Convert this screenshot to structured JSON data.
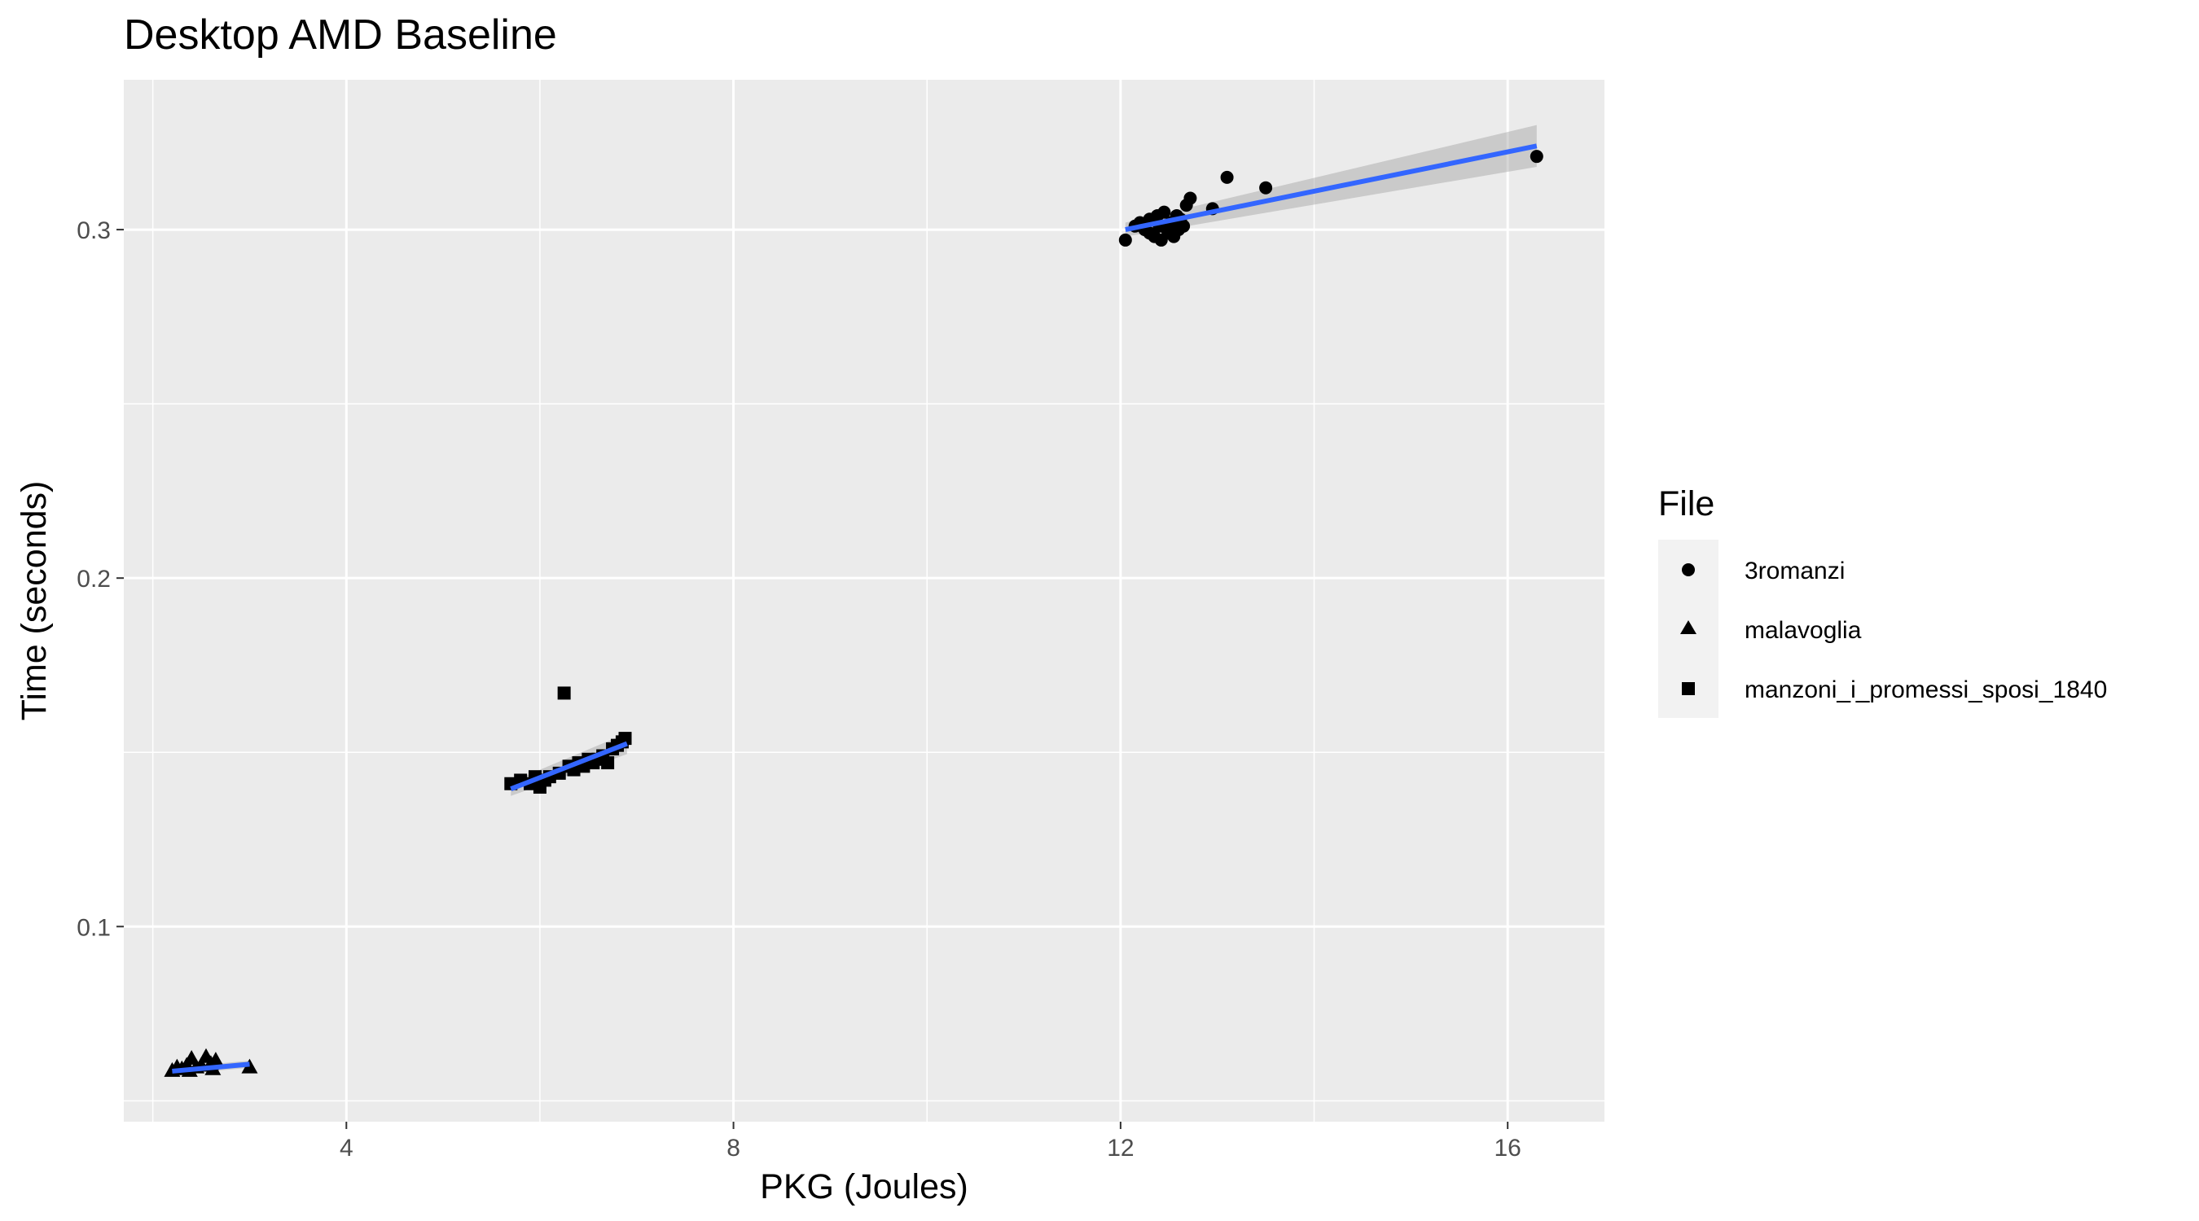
{
  "chart_data": {
    "type": "scatter",
    "title": "Desktop AMD Baseline",
    "xlabel": "PKG (Joules)",
    "ylabel": "Time (seconds)",
    "xlim": [
      1.7,
      17.0
    ],
    "ylim": [
      0.044,
      0.343
    ],
    "x_ticks": [
      4,
      8,
      12,
      16
    ],
    "x_tick_labels": [
      "4",
      "8",
      "12",
      "16"
    ],
    "y_ticks": [
      0.1,
      0.2,
      0.3
    ],
    "y_tick_labels": [
      "0.1",
      "0.2",
      "0.3"
    ],
    "grid": true,
    "legend": {
      "title": "File",
      "position": "right",
      "entries": [
        {
          "label": "3romanzi",
          "shape": "circle"
        },
        {
          "label": "malavoglia",
          "shape": "triangle"
        },
        {
          "label": "manzoni_i_promessi_sposi_1840",
          "shape": "square"
        }
      ]
    },
    "series": [
      {
        "name": "3romanzi",
        "shape": "circle",
        "points": [
          [
            12.05,
            0.297
          ],
          [
            12.15,
            0.301
          ],
          [
            12.2,
            0.302
          ],
          [
            12.25,
            0.3
          ],
          [
            12.3,
            0.299
          ],
          [
            12.3,
            0.303
          ],
          [
            12.35,
            0.298
          ],
          [
            12.38,
            0.304
          ],
          [
            12.4,
            0.301
          ],
          [
            12.42,
            0.297
          ],
          [
            12.45,
            0.305
          ],
          [
            12.48,
            0.3
          ],
          [
            12.5,
            0.299
          ],
          [
            12.52,
            0.302
          ],
          [
            12.55,
            0.298
          ],
          [
            12.58,
            0.304
          ],
          [
            12.6,
            0.3
          ],
          [
            12.62,
            0.303
          ],
          [
            12.65,
            0.301
          ],
          [
            12.68,
            0.307
          ],
          [
            12.72,
            0.309
          ],
          [
            12.95,
            0.306
          ],
          [
            13.1,
            0.315
          ],
          [
            13.5,
            0.312
          ],
          [
            16.3,
            0.321
          ]
        ],
        "fit": {
          "x": [
            12.05,
            16.3
          ],
          "y": [
            0.3,
            0.324
          ],
          "ci_low": [
            0.298,
            0.318
          ],
          "ci_high": [
            0.302,
            0.33
          ]
        }
      },
      {
        "name": "malavoglia",
        "shape": "triangle",
        "points": [
          [
            2.2,
            0.0585
          ],
          [
            2.25,
            0.0595
          ],
          [
            2.3,
            0.059
          ],
          [
            2.35,
            0.06
          ],
          [
            2.38,
            0.0585
          ],
          [
            2.4,
            0.062
          ],
          [
            2.45,
            0.0595
          ],
          [
            2.5,
            0.06
          ],
          [
            2.55,
            0.0625
          ],
          [
            2.6,
            0.0605
          ],
          [
            2.62,
            0.059
          ],
          [
            2.65,
            0.0615
          ],
          [
            3.0,
            0.0595
          ]
        ],
        "fit": {
          "x": [
            2.2,
            3.0
          ],
          "y": [
            0.0585,
            0.0605
          ],
          "ci_low": [
            0.0575,
            0.0595
          ],
          "ci_high": [
            0.0595,
            0.0615
          ]
        }
      },
      {
        "name": "manzoni_i_promessi_sposi_1840",
        "shape": "square",
        "points": [
          [
            5.7,
            0.141
          ],
          [
            5.8,
            0.142
          ],
          [
            5.9,
            0.141
          ],
          [
            5.95,
            0.143
          ],
          [
            6.0,
            0.14
          ],
          [
            6.05,
            0.142
          ],
          [
            6.1,
            0.143
          ],
          [
            6.2,
            0.144
          ],
          [
            6.25,
            0.167
          ],
          [
            6.3,
            0.146
          ],
          [
            6.35,
            0.145
          ],
          [
            6.4,
            0.147
          ],
          [
            6.45,
            0.146
          ],
          [
            6.5,
            0.148
          ],
          [
            6.55,
            0.147
          ],
          [
            6.6,
            0.148
          ],
          [
            6.65,
            0.149
          ],
          [
            6.7,
            0.147
          ],
          [
            6.75,
            0.151
          ],
          [
            6.8,
            0.152
          ],
          [
            6.85,
            0.153
          ],
          [
            6.88,
            0.154
          ]
        ],
        "fit": {
          "x": [
            5.7,
            6.9
          ],
          "y": [
            0.1395,
            0.1525
          ],
          "ci_low": [
            0.1375,
            0.1495
          ],
          "ci_high": [
            0.1415,
            0.1555
          ]
        }
      }
    ]
  }
}
